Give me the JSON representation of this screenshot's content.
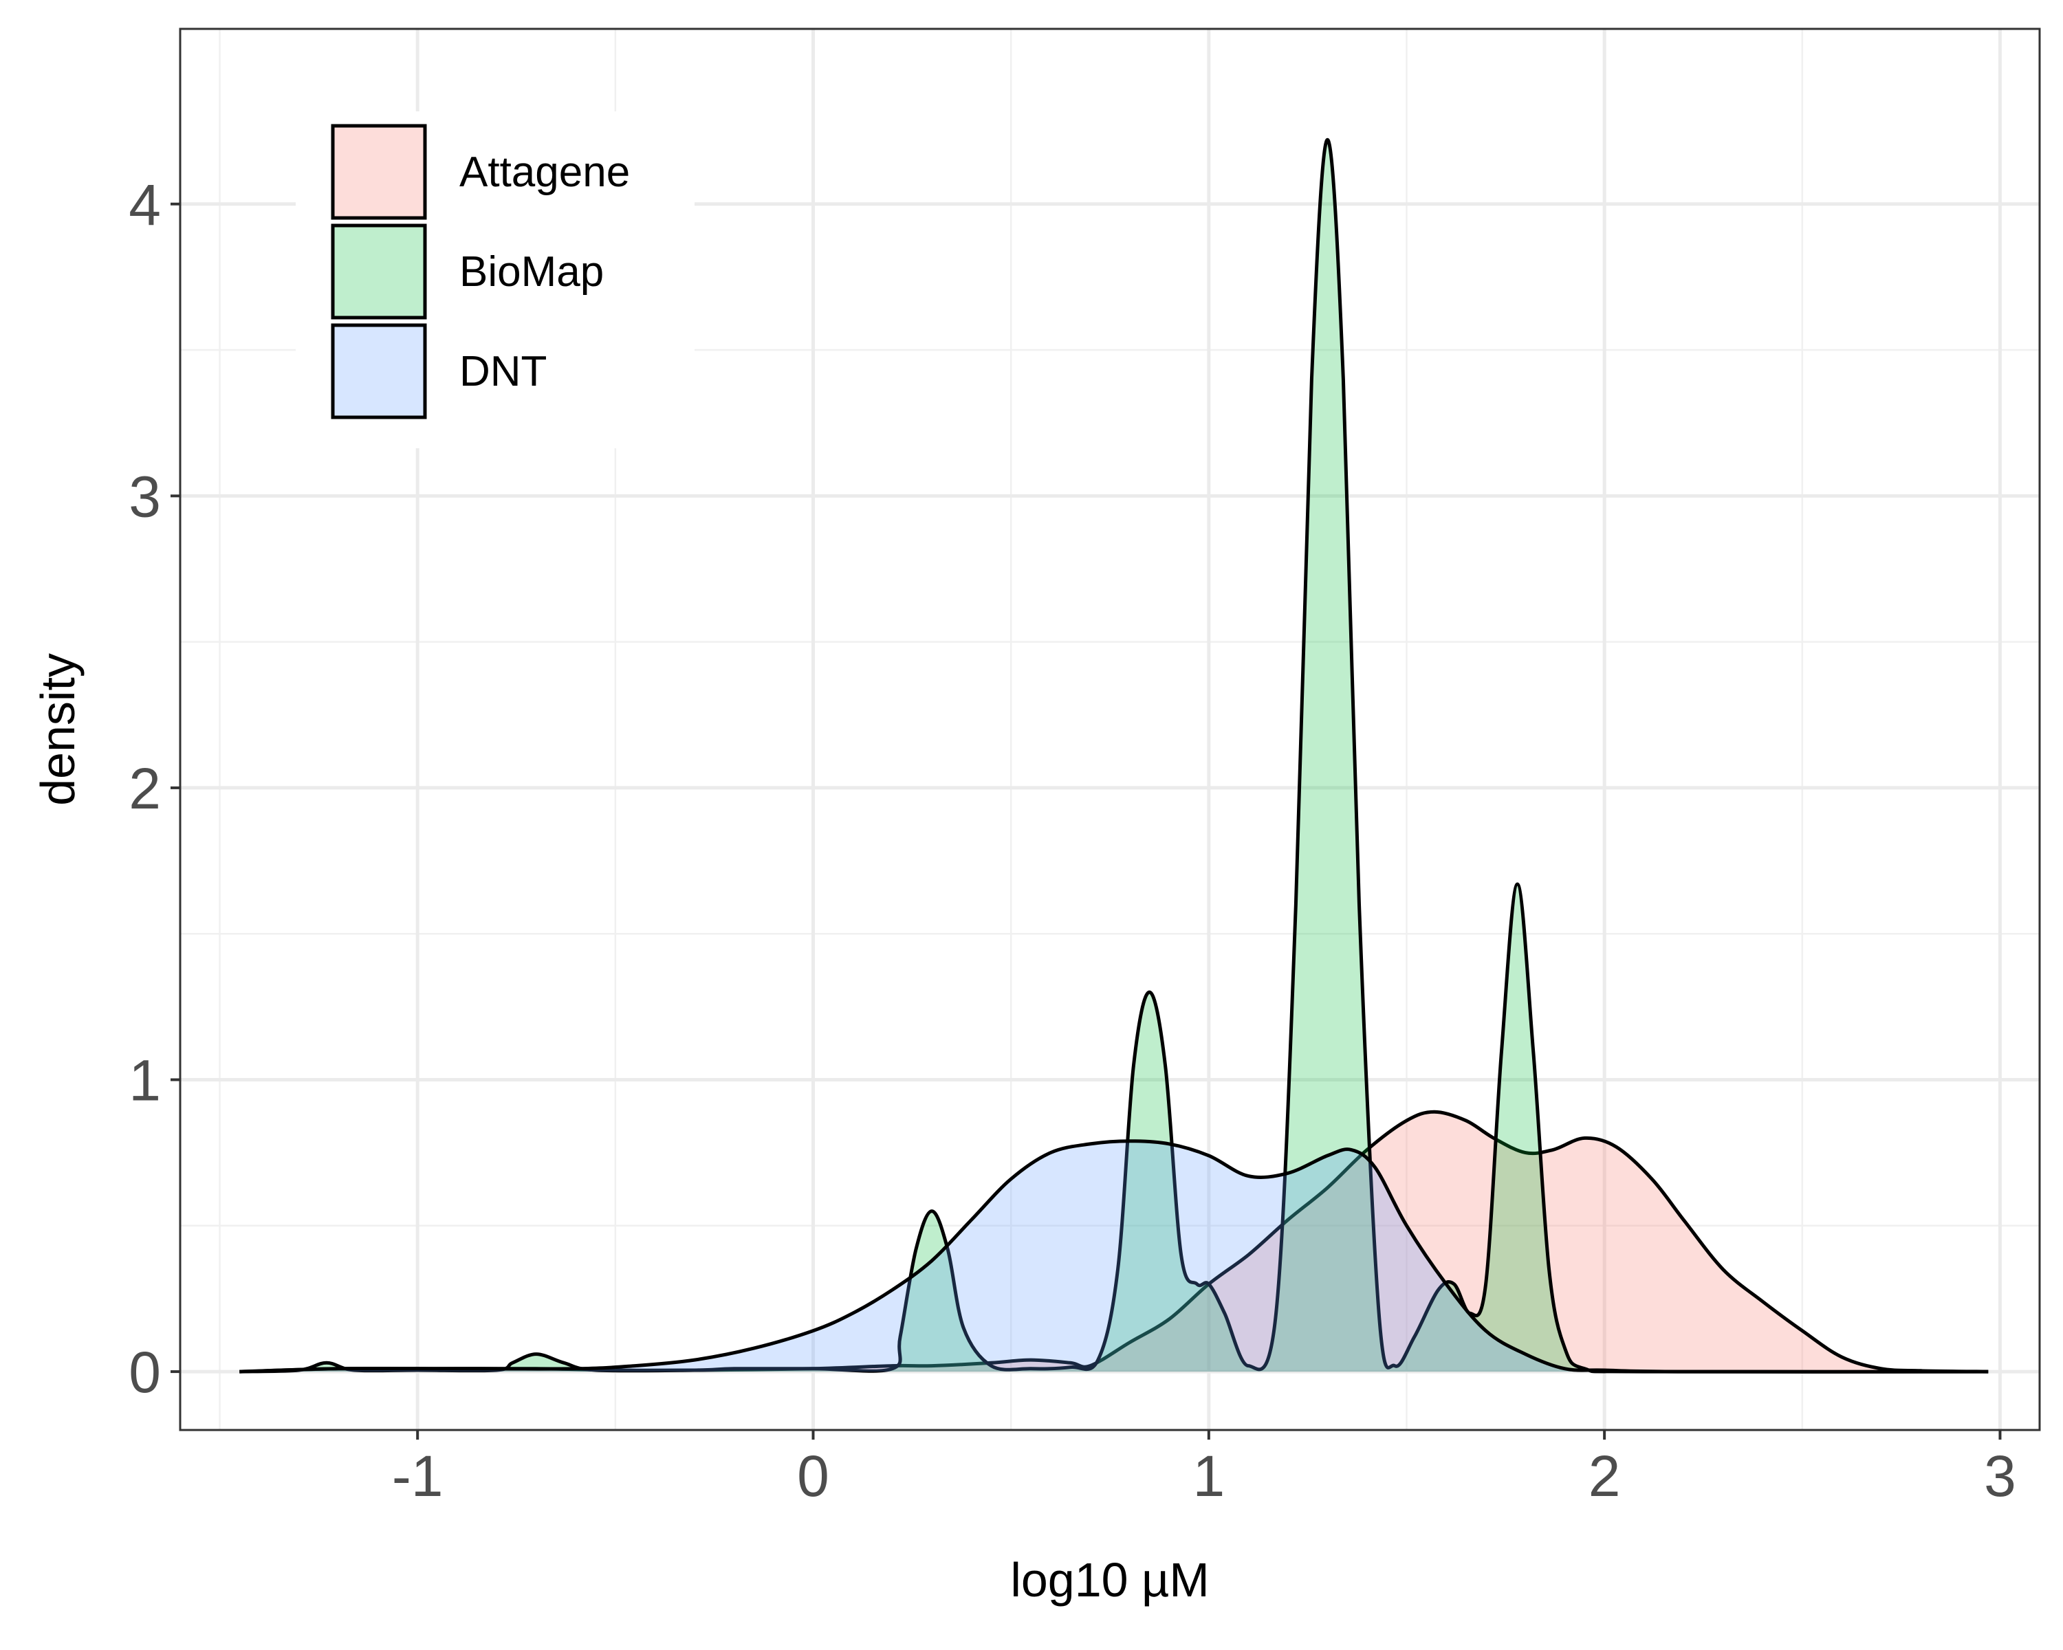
{
  "chart_data": {
    "type": "area",
    "title": "",
    "xlabel": "log10 µM",
    "ylabel": "density",
    "xlim": [
      -1.6,
      3.1
    ],
    "ylim": [
      -0.2,
      4.6
    ],
    "x_major_ticks": [
      -1,
      0,
      1,
      2,
      3
    ],
    "x_tick_labels": [
      "-1",
      "0",
      "1",
      "2",
      "3"
    ],
    "x_minor_ticks": [
      -1.5,
      -0.5,
      0.5,
      1.5,
      2.5
    ],
    "y_major_ticks": [
      0,
      1,
      2,
      3,
      4
    ],
    "y_tick_labels": [
      "0",
      "1",
      "2",
      "3",
      "4"
    ],
    "y_minor_ticks": [
      0.5,
      1.5,
      2.5,
      3.5
    ],
    "grid": true,
    "legend_position": "top-left",
    "series": [
      {
        "name": "Attagene",
        "color": "#F8766D",
        "points": [
          [
            -1.45,
            0
          ],
          [
            -1.2,
            0.01
          ],
          [
            -1.0,
            0.01
          ],
          [
            -0.7,
            0.01
          ],
          [
            -0.5,
            0.005
          ],
          [
            -0.3,
            0.005
          ],
          [
            0,
            0.01
          ],
          [
            0.2,
            0.02
          ],
          [
            0.3,
            0.02
          ],
          [
            0.45,
            0.03
          ],
          [
            0.55,
            0.04
          ],
          [
            0.65,
            0.03
          ],
          [
            0.7,
            0.02
          ],
          [
            0.8,
            0.1
          ],
          [
            0.9,
            0.18
          ],
          [
            1.0,
            0.3
          ],
          [
            1.1,
            0.4
          ],
          [
            1.2,
            0.52
          ],
          [
            1.3,
            0.63
          ],
          [
            1.4,
            0.76
          ],
          [
            1.5,
            0.86
          ],
          [
            1.57,
            0.89
          ],
          [
            1.65,
            0.86
          ],
          [
            1.72,
            0.8
          ],
          [
            1.8,
            0.75
          ],
          [
            1.87,
            0.76
          ],
          [
            1.95,
            0.8
          ],
          [
            2.03,
            0.77
          ],
          [
            2.12,
            0.66
          ],
          [
            2.2,
            0.52
          ],
          [
            2.3,
            0.35
          ],
          [
            2.4,
            0.24
          ],
          [
            2.5,
            0.14
          ],
          [
            2.6,
            0.05
          ],
          [
            2.7,
            0.01
          ],
          [
            2.8,
            0.003
          ],
          [
            2.97,
            0
          ]
        ]
      },
      {
        "name": "BioMap",
        "color": "#00BA38",
        "points": [
          [
            -1.45,
            0
          ],
          [
            -1.3,
            0.005
          ],
          [
            -1.23,
            0.03
          ],
          [
            -1.16,
            0.005
          ],
          [
            -1.0,
            0.005
          ],
          [
            -0.8,
            0.005
          ],
          [
            -0.76,
            0.03
          ],
          [
            -0.7,
            0.06
          ],
          [
            -0.63,
            0.03
          ],
          [
            -0.55,
            0.005
          ],
          [
            -0.3,
            0.005
          ],
          [
            -0.2,
            0.01
          ],
          [
            0,
            0.01
          ],
          [
            0.2,
            0.01
          ],
          [
            0.22,
            0.12
          ],
          [
            0.26,
            0.42
          ],
          [
            0.3,
            0.55
          ],
          [
            0.34,
            0.42
          ],
          [
            0.38,
            0.15
          ],
          [
            0.45,
            0.02
          ],
          [
            0.55,
            0.01
          ],
          [
            0.65,
            0.015
          ],
          [
            0.72,
            0.04
          ],
          [
            0.77,
            0.35
          ],
          [
            0.81,
            1.05
          ],
          [
            0.85,
            1.3
          ],
          [
            0.89,
            1.05
          ],
          [
            0.93,
            0.4
          ],
          [
            0.97,
            0.3
          ],
          [
            1.0,
            0.3
          ],
          [
            1.04,
            0.2
          ],
          [
            1.1,
            0.02
          ],
          [
            1.17,
            0.2
          ],
          [
            1.22,
            1.6
          ],
          [
            1.26,
            3.4
          ],
          [
            1.3,
            4.22
          ],
          [
            1.34,
            3.4
          ],
          [
            1.38,
            1.6
          ],
          [
            1.43,
            0.2
          ],
          [
            1.47,
            0.02
          ],
          [
            1.52,
            0.12
          ],
          [
            1.58,
            0.28
          ],
          [
            1.62,
            0.3
          ],
          [
            1.66,
            0.2
          ],
          [
            1.7,
            0.3
          ],
          [
            1.74,
            1.1
          ],
          [
            1.78,
            1.67
          ],
          [
            1.82,
            1.1
          ],
          [
            1.86,
            0.35
          ],
          [
            1.9,
            0.08
          ],
          [
            1.95,
            0.01
          ],
          [
            2.1,
            0
          ],
          [
            2.97,
            0
          ]
        ]
      },
      {
        "name": "DNT",
        "color": "#619CFF",
        "points": [
          [
            -1.45,
            0
          ],
          [
            -1.2,
            0.01
          ],
          [
            -0.9,
            0.01
          ],
          [
            -0.6,
            0.01
          ],
          [
            -0.45,
            0.02
          ],
          [
            -0.3,
            0.04
          ],
          [
            -0.15,
            0.08
          ],
          [
            0,
            0.14
          ],
          [
            0.1,
            0.2
          ],
          [
            0.2,
            0.28
          ],
          [
            0.3,
            0.38
          ],
          [
            0.4,
            0.52
          ],
          [
            0.5,
            0.66
          ],
          [
            0.6,
            0.75
          ],
          [
            0.7,
            0.78
          ],
          [
            0.8,
            0.79
          ],
          [
            0.9,
            0.78
          ],
          [
            1.0,
            0.74
          ],
          [
            1.1,
            0.67
          ],
          [
            1.2,
            0.68
          ],
          [
            1.3,
            0.74
          ],
          [
            1.36,
            0.76
          ],
          [
            1.42,
            0.7
          ],
          [
            1.5,
            0.5
          ],
          [
            1.6,
            0.3
          ],
          [
            1.7,
            0.14
          ],
          [
            1.8,
            0.06
          ],
          [
            1.9,
            0.01
          ],
          [
            2.0,
            0.005
          ],
          [
            2.2,
            0
          ],
          [
            2.97,
            0
          ]
        ]
      }
    ]
  },
  "legend": {
    "items": [
      {
        "label": "Attagene",
        "color": "#F8766D"
      },
      {
        "label": "BioMap",
        "color": "#00BA38"
      },
      {
        "label": "DNT",
        "color": "#619CFF"
      }
    ]
  }
}
